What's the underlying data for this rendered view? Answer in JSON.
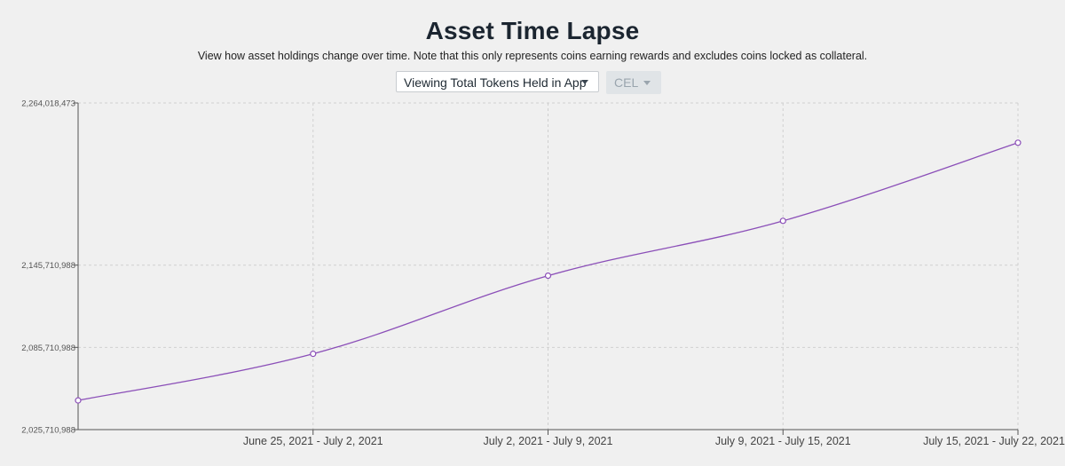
{
  "header": {
    "title": "Asset Time Lapse",
    "subtitle": "View how asset holdings change over time. Note that this only represents coins earning rewards and excludes coins locked as collateral."
  },
  "controls": {
    "view_select": {
      "value": "Viewing Total Tokens Held in App",
      "icon": "caret-down-icon"
    },
    "coin_select": {
      "value": "CEL",
      "disabled": true,
      "icon": "caret-down-icon"
    }
  },
  "colors": {
    "line": "#8b4fb8",
    "grid": "#cfcfcf",
    "axis": "#555555",
    "background": "#f0f0f0"
  },
  "chart_data": {
    "type": "line",
    "title": "",
    "xlabel": "",
    "ylabel": "",
    "grid": true,
    "categories": [
      "",
      "June 25, 2021 - July 2, 2021",
      "July 2, 2021 - July 9, 2021",
      "July 9, 2021 - July 15, 2021",
      "July 15, 2021 - July 22, 2021"
    ],
    "series": [
      {
        "values": [
          2047000000,
          2081000000,
          2138000000,
          2178000000,
          2235000000
        ]
      }
    ],
    "ylim": [
      2025710988,
      2264018473
    ],
    "y_ticks": [
      {
        "value": 2025710988,
        "label": "2,025,710,988"
      },
      {
        "value": 2085710988,
        "label": "2,085,710,988"
      },
      {
        "value": 2145710988,
        "label": "2,145,710,988"
      },
      {
        "value": 2264018473,
        "label": "2,264,018,473"
      }
    ]
  }
}
